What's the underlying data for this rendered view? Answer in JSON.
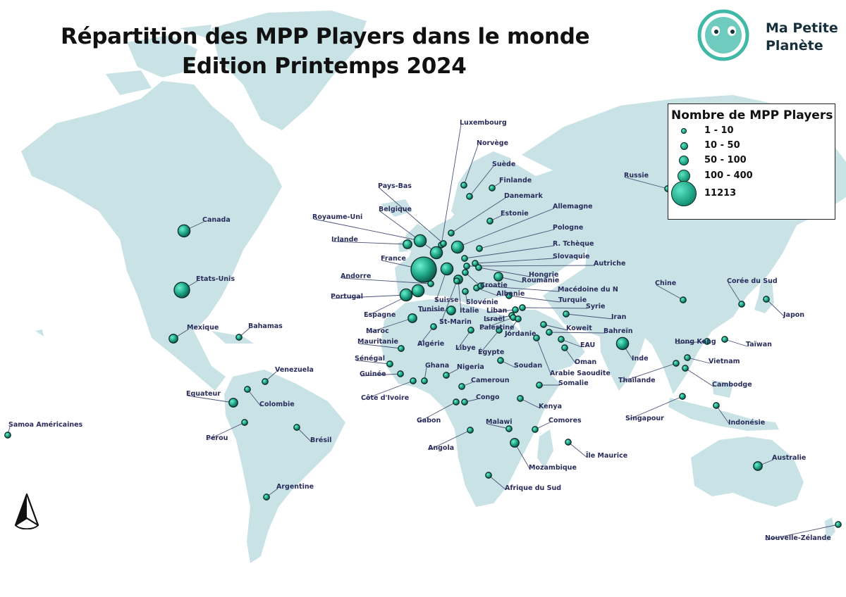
{
  "title": {
    "line1": "Répartition des MPP Players dans le monde",
    "line2": "Edition Printemps 2024"
  },
  "logo": {
    "line1": "Ma Petite",
    "line2": "Planète",
    "icon": "smiling-planet-icon",
    "color": "#3fb8a6"
  },
  "legend": {
    "title": "Nombre de MPP Players",
    "items": [
      {
        "label": "1 - 10",
        "size": 1
      },
      {
        "label": "10 - 50",
        "size": 2
      },
      {
        "label": "50 - 100",
        "size": 3
      },
      {
        "label": "100 - 400",
        "size": 4
      },
      {
        "label": "11213",
        "size": 5
      }
    ]
  },
  "colors": {
    "ocean": "#ffffff",
    "land": "#c8e2e6",
    "marker": "#1fa888",
    "label": "#2a2d5c"
  },
  "compass": "north-arrow-icon",
  "countries": [
    {
      "name": "Canada",
      "size": 3
    },
    {
      "name": "Etats-Unis",
      "size": 4
    },
    {
      "name": "Mexique",
      "size": 2
    },
    {
      "name": "Bahamas",
      "size": 1
    },
    {
      "name": "Venezuela",
      "size": 1
    },
    {
      "name": "Colombie",
      "size": 1
    },
    {
      "name": "Equateur",
      "size": 2
    },
    {
      "name": "Pérou",
      "size": 1
    },
    {
      "name": "Brésil",
      "size": 1
    },
    {
      "name": "Argentine",
      "size": 1
    },
    {
      "name": "Samoa Américaines",
      "size": 1
    },
    {
      "name": "Luxembourg",
      "size": 1
    },
    {
      "name": "Norvège",
      "size": 1
    },
    {
      "name": "Suède",
      "size": 1
    },
    {
      "name": "Finlande",
      "size": 1
    },
    {
      "name": "Danemark",
      "size": 1
    },
    {
      "name": "Pays-Bas",
      "size": 1
    },
    {
      "name": "Belgique",
      "size": 3
    },
    {
      "name": "Royaume-Uni",
      "size": 3
    },
    {
      "name": "Irlande",
      "size": 2
    },
    {
      "name": "France",
      "size": 5
    },
    {
      "name": "Andorre",
      "size": 1
    },
    {
      "name": "Portugal",
      "size": 3
    },
    {
      "name": "Espagne",
      "size": 3
    },
    {
      "name": "Estonie",
      "size": 1
    },
    {
      "name": "Allemagne",
      "size": 3
    },
    {
      "name": "Pologne",
      "size": 1
    },
    {
      "name": "R. Tchèque",
      "size": 1
    },
    {
      "name": "Slovaquie",
      "size": 1
    },
    {
      "name": "Autriche",
      "size": 1
    },
    {
      "name": "Hongrie",
      "size": 1
    },
    {
      "name": "Roumanie",
      "size": 2
    },
    {
      "name": "Croatie",
      "size": 1
    },
    {
      "name": "Albanie",
      "size": 1
    },
    {
      "name": "Macédoine du N",
      "size": 1
    },
    {
      "name": "Turquie",
      "size": 1
    },
    {
      "name": "Slovénie",
      "size": 1
    },
    {
      "name": "Suisse",
      "size": 3
    },
    {
      "name": "Italie",
      "size": 2
    },
    {
      "name": "St-Marin",
      "size": 1
    },
    {
      "name": "Tunisie",
      "size": 2
    },
    {
      "name": "Syrie",
      "size": 1
    },
    {
      "name": "Liban",
      "size": 1
    },
    {
      "name": "Israël",
      "size": 1
    },
    {
      "name": "Palestine",
      "size": 1
    },
    {
      "name": "Jordanie",
      "size": 1
    },
    {
      "name": "Iran",
      "size": 1
    },
    {
      "name": "Koweit",
      "size": 1
    },
    {
      "name": "Bahreïn",
      "size": 1
    },
    {
      "name": "EAU",
      "size": 1
    },
    {
      "name": "Oman",
      "size": 1
    },
    {
      "name": "Arabie Saoudite",
      "size": 1
    },
    {
      "name": "Maroc",
      "size": 2
    },
    {
      "name": "Algérie",
      "size": 1
    },
    {
      "name": "Mauritanie",
      "size": 1
    },
    {
      "name": "Libye",
      "size": 1
    },
    {
      "name": "Égypte",
      "size": 1
    },
    {
      "name": "Sénégal",
      "size": 1
    },
    {
      "name": "Guinée",
      "size": 1
    },
    {
      "name": "Ghana",
      "size": 1
    },
    {
      "name": "Nigeria",
      "size": 1
    },
    {
      "name": "Côte d'Ivoire",
      "size": 1
    },
    {
      "name": "Cameroun",
      "size": 1
    },
    {
      "name": "Soudan",
      "size": 1
    },
    {
      "name": "Somalie",
      "size": 1
    },
    {
      "name": "Kenya",
      "size": 1
    },
    {
      "name": "Congo",
      "size": 1
    },
    {
      "name": "Gabon",
      "size": 1
    },
    {
      "name": "Angola",
      "size": 1
    },
    {
      "name": "Malawi",
      "size": 1
    },
    {
      "name": "Comores",
      "size": 1
    },
    {
      "name": "Île Maurice",
      "size": 1
    },
    {
      "name": "Mozambique",
      "size": 2
    },
    {
      "name": "Afrique du Sud",
      "size": 1
    },
    {
      "name": "Russie",
      "size": 1
    },
    {
      "name": "Chine",
      "size": 1
    },
    {
      "name": "Corée du Sud",
      "size": 1
    },
    {
      "name": "Japon",
      "size": 1
    },
    {
      "name": "Inde",
      "size": 3
    },
    {
      "name": "Hong Kong",
      "size": 1
    },
    {
      "name": "Taïwan",
      "size": 1
    },
    {
      "name": "Vietnam",
      "size": 1
    },
    {
      "name": "Thaïlande",
      "size": 1
    },
    {
      "name": "Cambodge",
      "size": 1
    },
    {
      "name": "Singapour",
      "size": 1
    },
    {
      "name": "Indonésie",
      "size": 1
    },
    {
      "name": "Australie",
      "size": 2
    },
    {
      "name": "Nouvelle-Zélande",
      "size": 1
    }
  ]
}
